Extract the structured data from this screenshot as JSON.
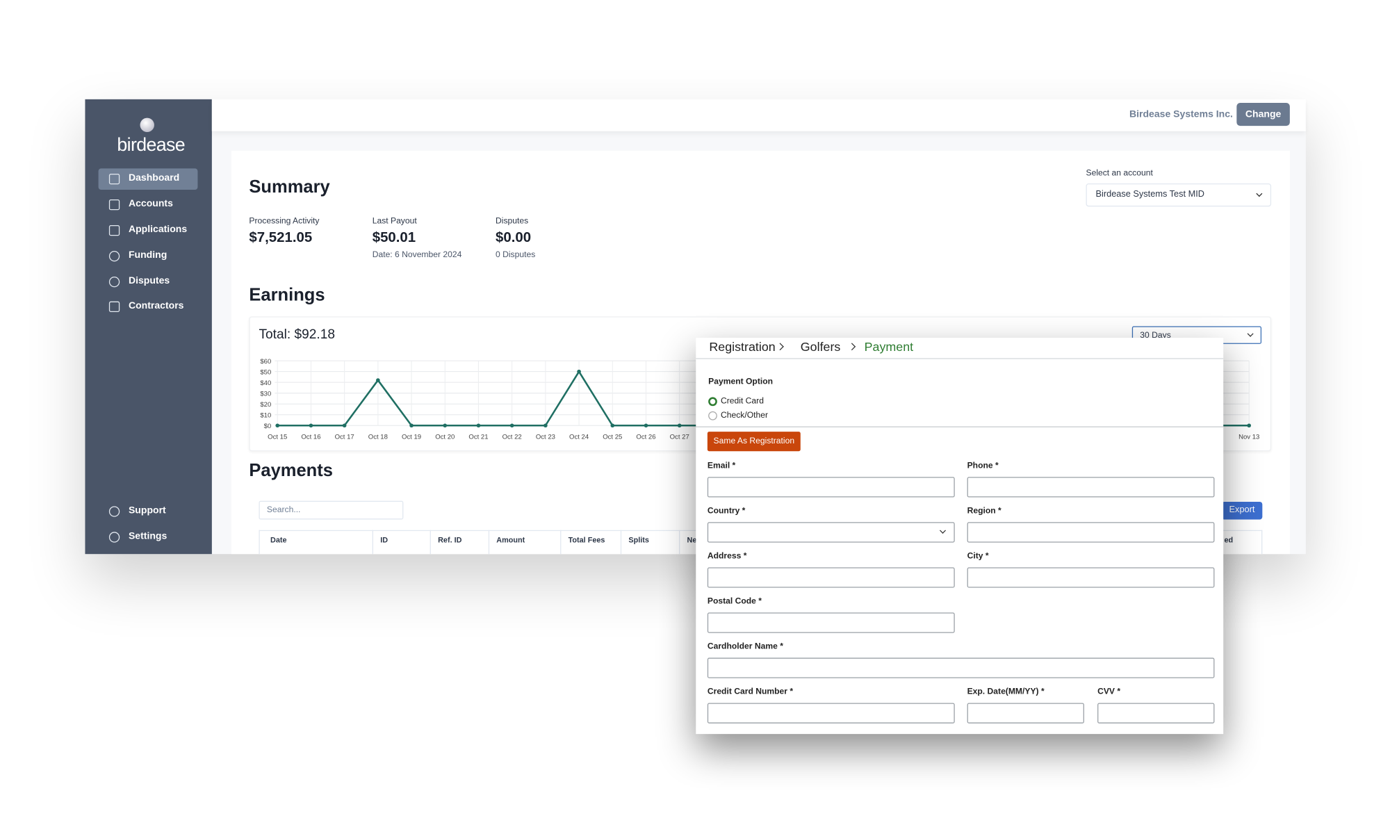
{
  "sidebar": {
    "logo": "birdease",
    "nav": [
      "Dashboard",
      "Accounts",
      "Applications",
      "Funding",
      "Disputes",
      "Contractors"
    ],
    "footer_nav": [
      "Support",
      "Settings"
    ]
  },
  "header": {
    "company": "Birdease Systems Inc.",
    "button": "Change"
  },
  "summary": {
    "title": "Summary",
    "account_label": "Select an account",
    "account": "Birdease Systems Test MID",
    "stats": [
      {
        "label": "Processing Activity",
        "value": "$7,521.05"
      },
      {
        "label": "Last Payout",
        "value": "$50.01",
        "note": "Date: 6 November 2024"
      },
      {
        "label": "Disputes",
        "value": "$0.00",
        "note": "0 Disputes"
      }
    ]
  },
  "earnings": {
    "title": "Earnings",
    "total": "Total: $92.18",
    "range": "30 Days",
    "chart_data": {
      "type": "line",
      "color": "#1f6f63",
      "grid": true,
      "categories": [
        "Oct 15",
        "Oct 16",
        "Oct 17",
        "Oct 18",
        "Oct 19",
        "Oct 20",
        "Oct 21",
        "Oct 22",
        "Oct 23",
        "Oct 24",
        "Oct 25",
        "Oct 26",
        "Oct 27",
        null,
        null,
        null,
        null,
        null,
        null,
        null,
        null,
        null,
        null,
        null,
        null,
        null,
        null,
        null,
        null,
        "Nov 13"
      ],
      "values": [
        0,
        0,
        0,
        42,
        0,
        0,
        0,
        0,
        0,
        50,
        0,
        0,
        0,
        0,
        0,
        0,
        0,
        0,
        0,
        0,
        0,
        0,
        0,
        0,
        0,
        0,
        0,
        0,
        0,
        0
      ],
      "ylim": [
        0,
        60
      ],
      "yticks": [
        {
          "value": 0,
          "label": "$0"
        },
        {
          "value": 10,
          "label": "$10"
        },
        {
          "value": 20,
          "label": "$20"
        },
        {
          "value": 30,
          "label": "$30"
        },
        {
          "value": 40,
          "label": "$40"
        },
        {
          "value": 50,
          "label": "$50"
        },
        {
          "value": 60,
          "label": "$60"
        }
      ]
    }
  },
  "payments": {
    "title": "Payments",
    "search_placeholder": "Search...",
    "export": "Export",
    "columns": [
      "Date",
      "ID",
      "Ref. ID",
      "Amount",
      "Total Fees",
      "Splits",
      "Net",
      "ed"
    ]
  },
  "form": {
    "breadcrumb": [
      "Registration",
      "Golfers",
      "Payment"
    ],
    "payment_option_label": "Payment Option",
    "options": [
      "Credit Card",
      "Check/Other"
    ],
    "same_button": "Same As Registration",
    "fields": [
      "Email *",
      "Phone *",
      "Country *",
      "Region *",
      "Address *",
      "City *",
      "Postal Code *",
      "Cardholder Name *",
      "Credit Card Number *",
      "Exp. Date(MM/YY) *",
      "CVV *"
    ]
  }
}
